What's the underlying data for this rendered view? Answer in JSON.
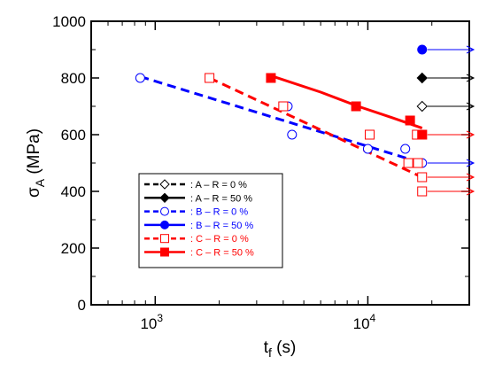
{
  "chart_data": {
    "type": "scatter",
    "xlabel": {
      "main": "t",
      "sub": "f",
      "unit": " (s)"
    },
    "ylabel": {
      "main": "σ",
      "sub": "A",
      "unit": " (MPa)"
    },
    "x_scale": "log",
    "xlim": [
      500,
      30000
    ],
    "ylim": [
      0,
      1000
    ],
    "x_ticks": [
      {
        "value": 1000,
        "base": "10",
        "exp": "3"
      },
      {
        "value": 10000,
        "base": "10",
        "exp": "4"
      }
    ],
    "y_ticks": [
      0,
      200,
      400,
      600,
      800,
      1000
    ],
    "grid": false,
    "legend_position": "lower-left",
    "series": [
      {
        "name": ": A – R = 0 %",
        "color": "#000000",
        "marker": "diamond-open",
        "line": "dashed",
        "points": [],
        "runout": [
          {
            "x": 18000,
            "y": 700
          }
        ],
        "fit": []
      },
      {
        "name": ": A – R = 50 %",
        "color": "#000000",
        "marker": "diamond-filled",
        "line": "solid",
        "points": [],
        "runout": [
          {
            "x": 18000,
            "y": 800
          }
        ],
        "fit": []
      },
      {
        "name": ": B – R = 0 %",
        "color": "#0000ff",
        "marker": "circle-open",
        "line": "dashed",
        "points": [
          {
            "x": 850,
            "y": 800
          },
          {
            "x": 4200,
            "y": 700
          },
          {
            "x": 4400,
            "y": 600
          },
          {
            "x": 10000,
            "y": 550
          },
          {
            "x": 15000,
            "y": 550
          }
        ],
        "runout": [
          {
            "x": 18000,
            "y": 500
          }
        ],
        "fit": [
          {
            "x": 850,
            "y": 805
          },
          {
            "x": 18000,
            "y": 500
          }
        ]
      },
      {
        "name": ": B – R = 50 %",
        "color": "#0000ff",
        "marker": "circle-filled",
        "line": "solid",
        "points": [],
        "runout": [
          {
            "x": 18000,
            "y": 900
          }
        ],
        "fit": []
      },
      {
        "name": ": C – R = 0 %",
        "color": "#ff0000",
        "marker": "square-open",
        "line": "dashed",
        "points": [
          {
            "x": 1800,
            "y": 800
          },
          {
            "x": 4000,
            "y": 700
          },
          {
            "x": 10200,
            "y": 600
          },
          {
            "x": 15500,
            "y": 500
          },
          {
            "x": 17000,
            "y": 600
          },
          {
            "x": 17200,
            "y": 500
          }
        ],
        "runout": [
          {
            "x": 18000,
            "y": 450
          },
          {
            "x": 18000,
            "y": 400
          }
        ],
        "fit": [
          {
            "x": 1800,
            "y": 800
          },
          {
            "x": 18000,
            "y": 450
          }
        ]
      },
      {
        "name": ": C – R = 50 %",
        "color": "#ff0000",
        "marker": "square-filled",
        "line": "solid",
        "points": [
          {
            "x": 3500,
            "y": 800
          },
          {
            "x": 8800,
            "y": 700
          },
          {
            "x": 15800,
            "y": 650
          },
          {
            "x": 18000,
            "y": 600
          }
        ],
        "runout": [
          {
            "x": 18000,
            "y": 600
          }
        ],
        "fit": [
          {
            "x": 3500,
            "y": 808
          },
          {
            "x": 6000,
            "y": 750
          },
          {
            "x": 9000,
            "y": 700
          },
          {
            "x": 13000,
            "y": 660
          },
          {
            "x": 18000,
            "y": 623
          }
        ]
      }
    ]
  }
}
